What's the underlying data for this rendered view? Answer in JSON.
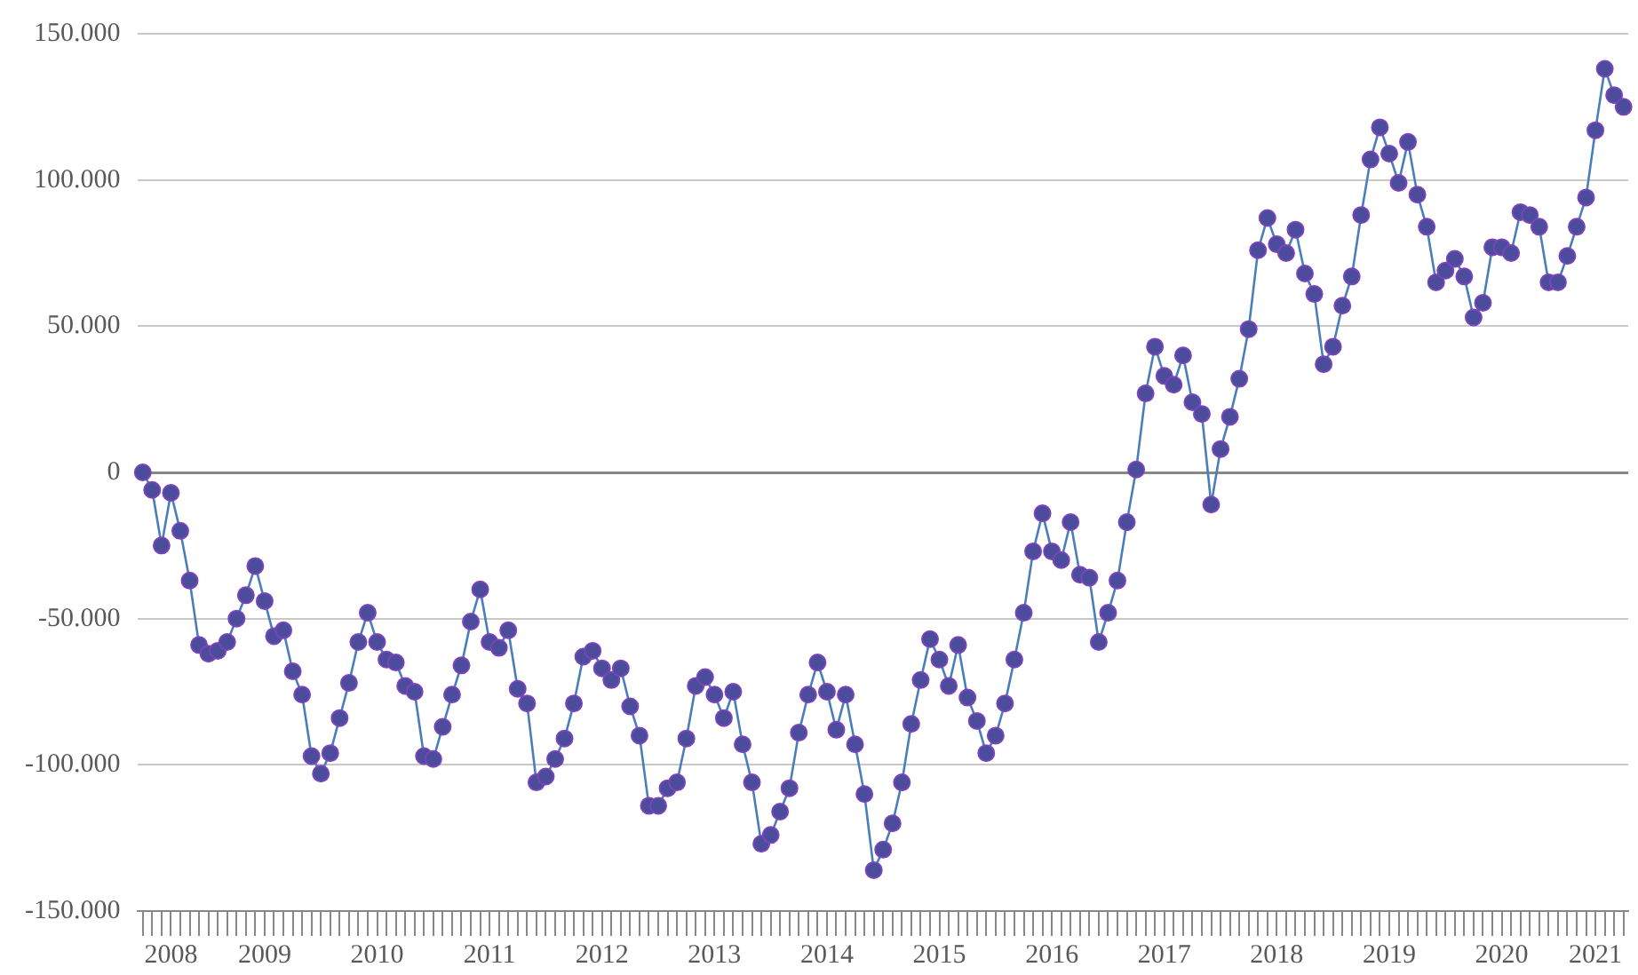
{
  "chart_data": {
    "type": "line",
    "categories": [
      null,
      null,
      null,
      "2008",
      null,
      null,
      null,
      null,
      null,
      null,
      null,
      null,
      null,
      "2009",
      null,
      null,
      null,
      null,
      null,
      null,
      null,
      null,
      null,
      null,
      null,
      "2010",
      null,
      null,
      null,
      null,
      null,
      null,
      null,
      null,
      null,
      null,
      null,
      "2011",
      null,
      null,
      null,
      null,
      null,
      null,
      null,
      null,
      null,
      null,
      null,
      "2012",
      null,
      null,
      null,
      null,
      null,
      null,
      null,
      null,
      null,
      null,
      null,
      "2013",
      null,
      null,
      null,
      null,
      null,
      null,
      null,
      null,
      null,
      null,
      null,
      "2014",
      null,
      null,
      null,
      null,
      null,
      null,
      null,
      null,
      null,
      null,
      null,
      "2015",
      null,
      null,
      null,
      null,
      null,
      null,
      null,
      null,
      null,
      null,
      null,
      "2016",
      null,
      null,
      null,
      null,
      null,
      null,
      null,
      null,
      null,
      null,
      null,
      "2017",
      null,
      null,
      null,
      null,
      null,
      null,
      null,
      null,
      null,
      null,
      null,
      "2018",
      null,
      null,
      null,
      null,
      null,
      null,
      null,
      null,
      null,
      null,
      null,
      "2019",
      null,
      null,
      null,
      null,
      null,
      null,
      null,
      null,
      null,
      null,
      null,
      "2020",
      null,
      null,
      null,
      null,
      null,
      null,
      null,
      null,
      null,
      "2021",
      null,
      null,
      null
    ],
    "series": [
      {
        "color": "#4a7ebb",
        "values": [
          0,
          -6000,
          -25000,
          -7000,
          -20000,
          -37000,
          -59000,
          -62000,
          -61000,
          -58000,
          -50000,
          -42000,
          -32000,
          -44000,
          -56000,
          -54000,
          -68000,
          -76000,
          -97000,
          -103000,
          -96000,
          -84000,
          -72000,
          -58000,
          -48000,
          -58000,
          -64000,
          -65000,
          -73000,
          -75000,
          -97000,
          -98000,
          -87000,
          -76000,
          -66000,
          -51000,
          -40000,
          -58000,
          -60000,
          -54000,
          -74000,
          -79000,
          -106000,
          -104000,
          -98000,
          -91000,
          -79000,
          -63000,
          -61000,
          -67000,
          -71000,
          -67000,
          -80000,
          -90000,
          -114000,
          -114000,
          -108000,
          -106000,
          -91000,
          -73000,
          -70000,
          -76000,
          -84000,
          -75000,
          -93000,
          -106000,
          -127000,
          -124000,
          -116000,
          -108000,
          -89000,
          -76000,
          -65000,
          -75000,
          -88000,
          -76000,
          -93000,
          -110000,
          -136000,
          -129000,
          -120000,
          -106000,
          -86000,
          -71000,
          -57000,
          -64000,
          -73000,
          -59000,
          -77000,
          -85000,
          -96000,
          -90000,
          -79000,
          -64000,
          -48000,
          -27000,
          -14000,
          -27000,
          -30000,
          -17000,
          -35000,
          -36000,
          -58000,
          -48000,
          -37000,
          -17000,
          1000,
          27000,
          43000,
          33000,
          30000,
          40000,
          24000,
          20000,
          -11000,
          8000,
          19000,
          32000,
          49000,
          76000,
          87000,
          78000,
          75000,
          83000,
          68000,
          61000,
          37000,
          43000,
          57000,
          67000,
          88000,
          107000,
          118000,
          109000,
          99000,
          113000,
          95000,
          84000,
          65000,
          69000,
          73000,
          67000,
          53000,
          58000,
          77000,
          77000,
          75000,
          89000,
          88000,
          84000,
          65000,
          65000,
          74000,
          84000,
          94000,
          117000,
          138000,
          129000,
          125000
        ]
      }
    ],
    "marker": "circle",
    "ylim": [
      -150000,
      150000
    ],
    "yticks": [
      {
        "value": -150000,
        "label": "-150.000"
      },
      {
        "value": -100000,
        "label": "-100.000"
      },
      {
        "value": -50000,
        "label": "-50.000"
      },
      {
        "value": 0,
        "label": "0"
      },
      {
        "value": 50000,
        "label": "50.000"
      },
      {
        "value": 100000,
        "label": "100.000"
      },
      {
        "value": 150000,
        "label": "150.000"
      }
    ],
    "grid": "y",
    "legend": false
  }
}
